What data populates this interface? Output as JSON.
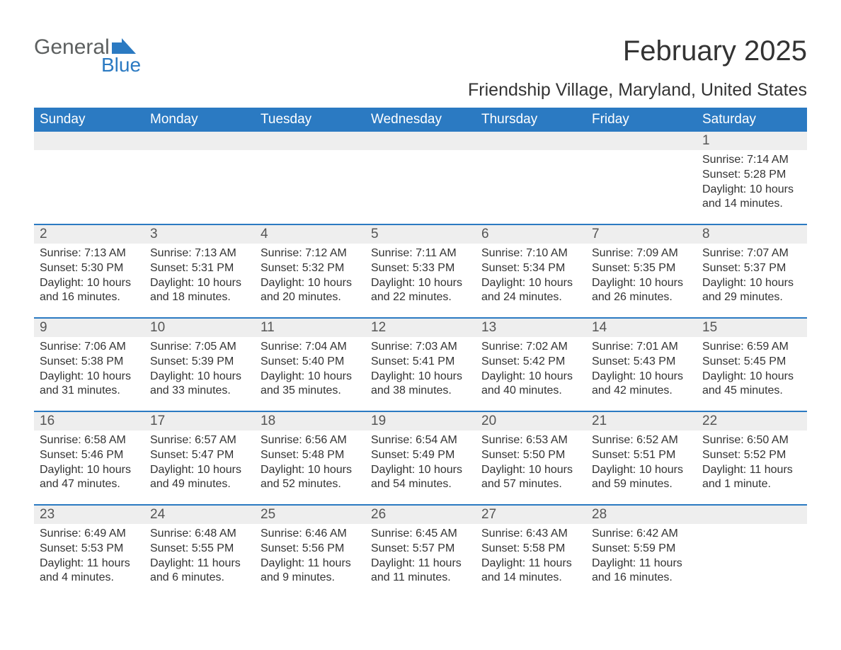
{
  "logo": {
    "text1": "General",
    "text2": "Blue",
    "shape_color": "#2b7ac2"
  },
  "header": {
    "month_title": "February 2025",
    "location": "Friendship Village, Maryland, United States"
  },
  "colors": {
    "header_bar": "#2b7ac2",
    "day_num_bg": "#eeeeee",
    "week_divider": "#2b7ac2",
    "text": "#333333",
    "logo_gray": "#5d6060"
  },
  "day_of_week_labels": [
    "Sunday",
    "Monday",
    "Tuesday",
    "Wednesday",
    "Thursday",
    "Friday",
    "Saturday"
  ],
  "weeks": [
    [
      {
        "num": "",
        "lines": []
      },
      {
        "num": "",
        "lines": []
      },
      {
        "num": "",
        "lines": []
      },
      {
        "num": "",
        "lines": []
      },
      {
        "num": "",
        "lines": []
      },
      {
        "num": "",
        "lines": []
      },
      {
        "num": "1",
        "lines": [
          "Sunrise: 7:14 AM",
          "Sunset: 5:28 PM",
          "Daylight: 10 hours and 14 minutes."
        ]
      }
    ],
    [
      {
        "num": "2",
        "lines": [
          "Sunrise: 7:13 AM",
          "Sunset: 5:30 PM",
          "Daylight: 10 hours and 16 minutes."
        ]
      },
      {
        "num": "3",
        "lines": [
          "Sunrise: 7:13 AM",
          "Sunset: 5:31 PM",
          "Daylight: 10 hours and 18 minutes."
        ]
      },
      {
        "num": "4",
        "lines": [
          "Sunrise: 7:12 AM",
          "Sunset: 5:32 PM",
          "Daylight: 10 hours and 20 minutes."
        ]
      },
      {
        "num": "5",
        "lines": [
          "Sunrise: 7:11 AM",
          "Sunset: 5:33 PM",
          "Daylight: 10 hours and 22 minutes."
        ]
      },
      {
        "num": "6",
        "lines": [
          "Sunrise: 7:10 AM",
          "Sunset: 5:34 PM",
          "Daylight: 10 hours and 24 minutes."
        ]
      },
      {
        "num": "7",
        "lines": [
          "Sunrise: 7:09 AM",
          "Sunset: 5:35 PM",
          "Daylight: 10 hours and 26 minutes."
        ]
      },
      {
        "num": "8",
        "lines": [
          "Sunrise: 7:07 AM",
          "Sunset: 5:37 PM",
          "Daylight: 10 hours and 29 minutes."
        ]
      }
    ],
    [
      {
        "num": "9",
        "lines": [
          "Sunrise: 7:06 AM",
          "Sunset: 5:38 PM",
          "Daylight: 10 hours and 31 minutes."
        ]
      },
      {
        "num": "10",
        "lines": [
          "Sunrise: 7:05 AM",
          "Sunset: 5:39 PM",
          "Daylight: 10 hours and 33 minutes."
        ]
      },
      {
        "num": "11",
        "lines": [
          "Sunrise: 7:04 AM",
          "Sunset: 5:40 PM",
          "Daylight: 10 hours and 35 minutes."
        ]
      },
      {
        "num": "12",
        "lines": [
          "Sunrise: 7:03 AM",
          "Sunset: 5:41 PM",
          "Daylight: 10 hours and 38 minutes."
        ]
      },
      {
        "num": "13",
        "lines": [
          "Sunrise: 7:02 AM",
          "Sunset: 5:42 PM",
          "Daylight: 10 hours and 40 minutes."
        ]
      },
      {
        "num": "14",
        "lines": [
          "Sunrise: 7:01 AM",
          "Sunset: 5:43 PM",
          "Daylight: 10 hours and 42 minutes."
        ]
      },
      {
        "num": "15",
        "lines": [
          "Sunrise: 6:59 AM",
          "Sunset: 5:45 PM",
          "Daylight: 10 hours and 45 minutes."
        ]
      }
    ],
    [
      {
        "num": "16",
        "lines": [
          "Sunrise: 6:58 AM",
          "Sunset: 5:46 PM",
          "Daylight: 10 hours and 47 minutes."
        ]
      },
      {
        "num": "17",
        "lines": [
          "Sunrise: 6:57 AM",
          "Sunset: 5:47 PM",
          "Daylight: 10 hours and 49 minutes."
        ]
      },
      {
        "num": "18",
        "lines": [
          "Sunrise: 6:56 AM",
          "Sunset: 5:48 PM",
          "Daylight: 10 hours and 52 minutes."
        ]
      },
      {
        "num": "19",
        "lines": [
          "Sunrise: 6:54 AM",
          "Sunset: 5:49 PM",
          "Daylight: 10 hours and 54 minutes."
        ]
      },
      {
        "num": "20",
        "lines": [
          "Sunrise: 6:53 AM",
          "Sunset: 5:50 PM",
          "Daylight: 10 hours and 57 minutes."
        ]
      },
      {
        "num": "21",
        "lines": [
          "Sunrise: 6:52 AM",
          "Sunset: 5:51 PM",
          "Daylight: 10 hours and 59 minutes."
        ]
      },
      {
        "num": "22",
        "lines": [
          "Sunrise: 6:50 AM",
          "Sunset: 5:52 PM",
          "Daylight: 11 hours and 1 minute."
        ]
      }
    ],
    [
      {
        "num": "23",
        "lines": [
          "Sunrise: 6:49 AM",
          "Sunset: 5:53 PM",
          "Daylight: 11 hours and 4 minutes."
        ]
      },
      {
        "num": "24",
        "lines": [
          "Sunrise: 6:48 AM",
          "Sunset: 5:55 PM",
          "Daylight: 11 hours and 6 minutes."
        ]
      },
      {
        "num": "25",
        "lines": [
          "Sunrise: 6:46 AM",
          "Sunset: 5:56 PM",
          "Daylight: 11 hours and 9 minutes."
        ]
      },
      {
        "num": "26",
        "lines": [
          "Sunrise: 6:45 AM",
          "Sunset: 5:57 PM",
          "Daylight: 11 hours and 11 minutes."
        ]
      },
      {
        "num": "27",
        "lines": [
          "Sunrise: 6:43 AM",
          "Sunset: 5:58 PM",
          "Daylight: 11 hours and 14 minutes."
        ]
      },
      {
        "num": "28",
        "lines": [
          "Sunrise: 6:42 AM",
          "Sunset: 5:59 PM",
          "Daylight: 11 hours and 16 minutes."
        ]
      },
      {
        "num": "",
        "lines": []
      }
    ]
  ]
}
